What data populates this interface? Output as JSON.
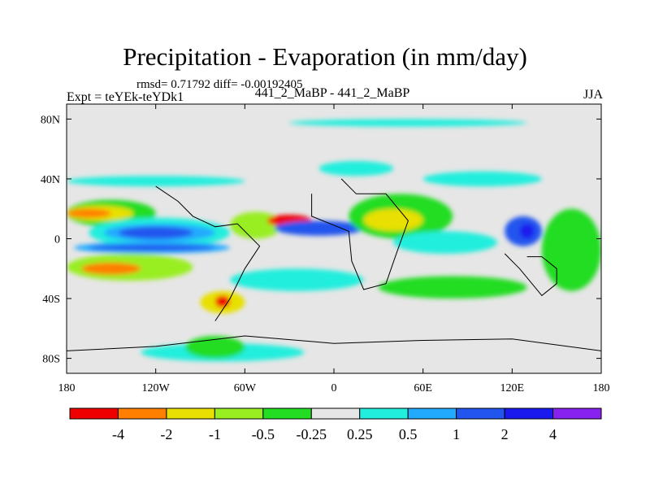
{
  "chart_data": {
    "type": "heatmap",
    "title": "Precipitation - Evaporation (in mm/day)",
    "stats_text": "rmsd= 0.71792 diff= -0.00192405",
    "left_text": "Expt = teYEk-teYDk1",
    "center_text": "441_2_MaBP - 441_2_MaBP",
    "right_text": "JJA",
    "x_range": [
      -180,
      180
    ],
    "y_range": [
      -90,
      90
    ],
    "x_ticks": [
      {
        "value": -180,
        "label": "180"
      },
      {
        "value": -120,
        "label": "120W"
      },
      {
        "value": -60,
        "label": "60W"
      },
      {
        "value": 0,
        "label": "0"
      },
      {
        "value": 60,
        "label": "60E"
      },
      {
        "value": 120,
        "label": "120E"
      },
      {
        "value": 180,
        "label": "180"
      }
    ],
    "y_ticks": [
      {
        "value": 80,
        "label": "80N"
      },
      {
        "value": 40,
        "label": "40N"
      },
      {
        "value": 0,
        "label": "0"
      },
      {
        "value": -40,
        "label": "40S"
      },
      {
        "value": -80,
        "label": "80S"
      }
    ],
    "colorbar": {
      "colors": [
        "#ee0000",
        "#ff7f00",
        "#e8e000",
        "#99ee22",
        "#22dd22",
        "#e6e6e6",
        "#22eedd",
        "#22aaff",
        "#2255ee",
        "#1a1aee",
        "#8822ee"
      ],
      "labels": [
        "-4",
        "-2",
        "-1",
        "-0.5",
        "-0.25",
        "0.25",
        "0.5",
        "1",
        "2",
        "4"
      ]
    },
    "regions": [
      {
        "name": "polar-positive-band-north",
        "lon": [
          -30,
          130
        ],
        "lat": [
          75,
          80
        ],
        "cls": 6
      },
      {
        "name": "npac-positive-band",
        "lon": [
          -180,
          -60
        ],
        "lat": [
          35,
          42
        ],
        "cls": 6
      },
      {
        "name": "natl-positive",
        "lon": [
          -10,
          40
        ],
        "lat": [
          42,
          52
        ],
        "cls": 6
      },
      {
        "name": "eurasia-positive",
        "lon": [
          60,
          140
        ],
        "lat": [
          35,
          45
        ],
        "cls": 6
      },
      {
        "name": "subtrop-npac-dry-outer",
        "lon": [
          -180,
          -120
        ],
        "lat": [
          8,
          26
        ],
        "cls": 4
      },
      {
        "name": "subtrop-npac-dry-mid",
        "lon": [
          -180,
          -135
        ],
        "lat": [
          12,
          22
        ],
        "cls": 2
      },
      {
        "name": "subtrop-npac-dry-core",
        "lon": [
          -180,
          -150
        ],
        "lat": [
          14,
          20
        ],
        "cls": 1
      },
      {
        "name": "itcz-pacific-outer",
        "lon": [
          -165,
          -70
        ],
        "lat": [
          -6,
          14
        ],
        "cls": 6
      },
      {
        "name": "itcz-pacific",
        "lon": [
          -155,
          -80
        ],
        "lat": [
          -2,
          10
        ],
        "cls": 7
      },
      {
        "name": "itcz-pacific-core",
        "lon": [
          -145,
          -95
        ],
        "lat": [
          0,
          8
        ],
        "cls": 8
      },
      {
        "name": "spcz-outer",
        "lon": [
          -175,
          -70
        ],
        "lat": [
          -10,
          -2
        ],
        "cls": 7
      },
      {
        "name": "spcz",
        "lon": [
          -165,
          -80
        ],
        "lat": [
          -8,
          -4
        ],
        "cls": 8
      },
      {
        "name": "sh-dry-band",
        "lon": [
          -180,
          -95
        ],
        "lat": [
          -28,
          -10
        ],
        "cls": 3
      },
      {
        "name": "sh-dry-core",
        "lon": [
          -170,
          -130
        ],
        "lat": [
          -24,
          -16
        ],
        "cls": 1
      },
      {
        "name": "amazon-dry",
        "lon": [
          -70,
          -35
        ],
        "lat": [
          0,
          18
        ],
        "cls": 3
      },
      {
        "name": "amazon-dry-core",
        "lon": [
          -45,
          -15
        ],
        "lat": [
          8,
          16
        ],
        "cls": 0
      },
      {
        "name": "atlantic-itcz",
        "lon": [
          -40,
          20
        ],
        "lat": [
          2,
          12
        ],
        "cls": 8
      },
      {
        "name": "africa-wet-outer",
        "lon": [
          10,
          80
        ],
        "lat": [
          0,
          30
        ],
        "cls": 4
      },
      {
        "name": "africa-wet",
        "lon": [
          20,
          60
        ],
        "lat": [
          5,
          20
        ],
        "cls": 2
      },
      {
        "name": "indian-ocean",
        "lon": [
          40,
          110
        ],
        "lat": [
          -10,
          5
        ],
        "cls": 6
      },
      {
        "name": "s-ocean-dry",
        "lon": [
          -90,
          -60
        ],
        "lat": [
          -50,
          -35
        ],
        "cls": 2
      },
      {
        "name": "s-ocean-dry-core",
        "lon": [
          -80,
          -70
        ],
        "lat": [
          -46,
          -38
        ],
        "cls": 0
      },
      {
        "name": "s-atlantic-band",
        "lon": [
          -70,
          20
        ],
        "lat": [
          -35,
          -20
        ],
        "cls": 6
      },
      {
        "name": "s-indian-wet",
        "lon": [
          30,
          130
        ],
        "lat": [
          -40,
          -25
        ],
        "cls": 4
      },
      {
        "name": "antarctic-coast-wet",
        "lon": [
          -130,
          -20
        ],
        "lat": [
          -82,
          -70
        ],
        "cls": 6
      },
      {
        "name": "antarctic-coast-dry",
        "lon": [
          -100,
          -60
        ],
        "lat": [
          -80,
          -65
        ],
        "cls": 4
      },
      {
        "name": "w-pacific-monsoon",
        "lon": [
          115,
          140
        ],
        "lat": [
          -5,
          15
        ],
        "cls": 8
      },
      {
        "name": "w-pacific-core",
        "lon": [
          125,
          135
        ],
        "lat": [
          0,
          10
        ],
        "cls": 9
      },
      {
        "name": "e-pacific-wet",
        "lon": [
          140,
          180
        ],
        "lat": [
          -35,
          20
        ],
        "cls": 4
      }
    ]
  }
}
